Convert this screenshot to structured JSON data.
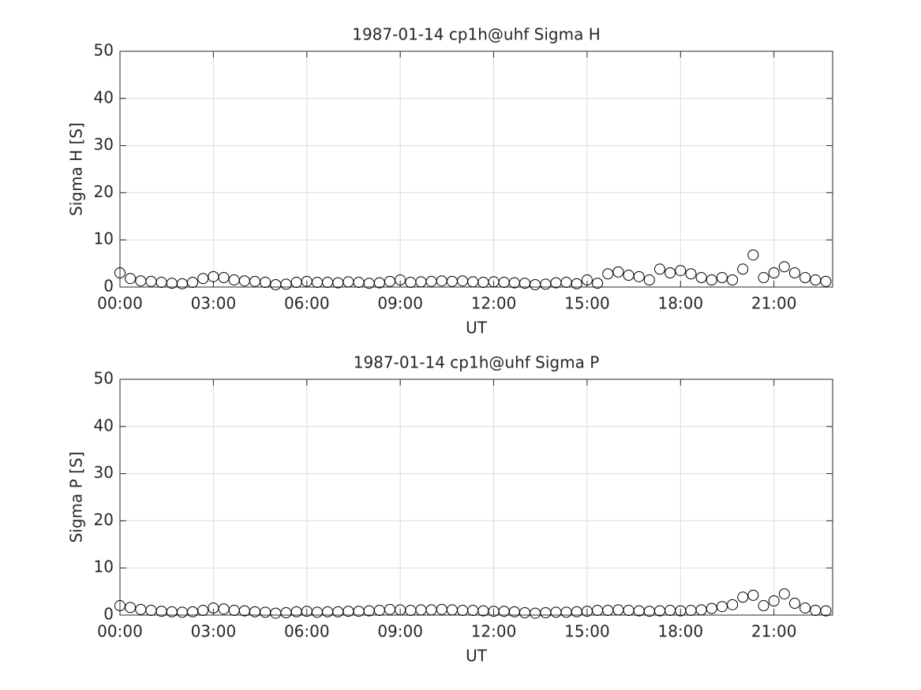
{
  "chart_data": [
    {
      "type": "scatter",
      "title": "1987-01-14  cp1h@uhf Sigma H",
      "xlabel": "UT",
      "ylabel": "Sigma H [S]",
      "x": [
        0,
        20,
        40,
        60,
        80,
        100,
        120,
        140,
        160,
        180,
        200,
        220,
        240,
        260,
        280,
        300,
        320,
        340,
        360,
        380,
        400,
        420,
        440,
        460,
        480,
        500,
        520,
        540,
        560,
        580,
        600,
        620,
        640,
        660,
        680,
        700,
        720,
        740,
        760,
        780,
        800,
        820,
        840,
        860,
        880,
        900,
        920,
        940,
        960,
        980,
        1000,
        1020,
        1040,
        1060,
        1080,
        1100,
        1120,
        1140,
        1160,
        1180,
        1200,
        1220,
        1240,
        1260,
        1280,
        1300,
        1320,
        1340,
        1360
      ],
      "values": [
        3.0,
        1.8,
        1.3,
        1.2,
        1.0,
        0.8,
        0.7,
        1.0,
        1.8,
        2.2,
        2.0,
        1.5,
        1.3,
        1.2,
        1.0,
        0.5,
        0.6,
        1.0,
        1.2,
        1.0,
        1.0,
        0.9,
        1.1,
        1.0,
        0.8,
        0.9,
        1.2,
        1.5,
        1.0,
        1.1,
        1.2,
        1.3,
        1.2,
        1.3,
        1.1,
        1.0,
        1.1,
        1.0,
        0.9,
        0.8,
        0.5,
        0.6,
        0.9,
        1.0,
        0.7,
        1.5,
        0.8,
        2.8,
        3.2,
        2.5,
        2.2,
        1.5,
        3.8,
        3.0,
        3.5,
        2.8,
        2.0,
        1.5,
        2.0,
        1.5,
        3.8,
        6.8,
        2.0,
        3.0,
        4.3,
        3.0,
        2.0,
        1.5,
        1.2
      ],
      "color": "#000000",
      "xlim": [
        0,
        1373
      ],
      "xticks": [
        {
          "value": 0,
          "label": "00:00"
        },
        {
          "value": 180,
          "label": "03:00"
        },
        {
          "value": 360,
          "label": "06:00"
        },
        {
          "value": 540,
          "label": "09:00"
        },
        {
          "value": 720,
          "label": "12:00"
        },
        {
          "value": 900,
          "label": "15:00"
        },
        {
          "value": 1080,
          "label": "18:00"
        },
        {
          "value": 1260,
          "label": "21:00"
        }
      ],
      "ylim": [
        0,
        50
      ],
      "yticks": [
        0,
        10,
        20,
        30,
        40,
        50
      ],
      "grid": true
    },
    {
      "type": "scatter",
      "title": "1987-01-14  cp1h@uhf Sigma P",
      "xlabel": "UT",
      "ylabel": "Sigma P [S]",
      "x": [
        0,
        20,
        40,
        60,
        80,
        100,
        120,
        140,
        160,
        180,
        200,
        220,
        240,
        260,
        280,
        300,
        320,
        340,
        360,
        380,
        400,
        420,
        440,
        460,
        480,
        500,
        520,
        540,
        560,
        580,
        600,
        620,
        640,
        660,
        680,
        700,
        720,
        740,
        760,
        780,
        800,
        820,
        840,
        860,
        880,
        900,
        920,
        940,
        960,
        980,
        1000,
        1020,
        1040,
        1060,
        1080,
        1100,
        1120,
        1140,
        1160,
        1180,
        1200,
        1220,
        1240,
        1260,
        1280,
        1300,
        1320,
        1340,
        1360
      ],
      "values": [
        2.0,
        1.6,
        1.2,
        1.0,
        0.8,
        0.7,
        0.6,
        0.7,
        1.0,
        1.5,
        1.3,
        1.0,
        0.9,
        0.7,
        0.6,
        0.4,
        0.5,
        0.7,
        0.8,
        0.6,
        0.7,
        0.7,
        0.8,
        0.8,
        0.9,
        1.0,
        1.2,
        1.1,
        1.0,
        1.1,
        1.1,
        1.2,
        1.1,
        1.0,
        1.0,
        0.9,
        0.8,
        0.8,
        0.7,
        0.5,
        0.4,
        0.5,
        0.6,
        0.6,
        0.7,
        0.8,
        1.0,
        1.0,
        1.1,
        1.0,
        0.9,
        0.8,
        0.9,
        1.0,
        0.9,
        1.0,
        1.1,
        1.4,
        1.8,
        2.2,
        3.8,
        4.2,
        2.0,
        3.0,
        4.5,
        2.5,
        1.5,
        1.0,
        0.9
      ],
      "color": "#000000",
      "xlim": [
        0,
        1373
      ],
      "xticks": [
        {
          "value": 0,
          "label": "00:00"
        },
        {
          "value": 180,
          "label": "03:00"
        },
        {
          "value": 360,
          "label": "06:00"
        },
        {
          "value": 540,
          "label": "09:00"
        },
        {
          "value": 720,
          "label": "12:00"
        },
        {
          "value": 900,
          "label": "15:00"
        },
        {
          "value": 1080,
          "label": "18:00"
        },
        {
          "value": 1260,
          "label": "21:00"
        }
      ],
      "ylim": [
        0,
        50
      ],
      "yticks": [
        0,
        10,
        20,
        30,
        40,
        50
      ],
      "grid": true
    }
  ]
}
